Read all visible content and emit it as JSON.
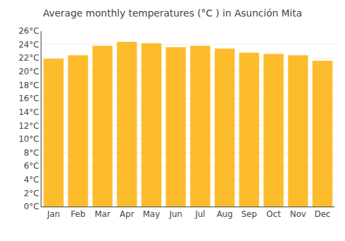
{
  "chart_data": {
    "type": "bar",
    "title": "Average monthly temperatures (°C ) in Asunción Mita",
    "categories": [
      "Jan",
      "Feb",
      "Mar",
      "Apr",
      "May",
      "Jun",
      "Jul",
      "Aug",
      "Sep",
      "Oct",
      "Nov",
      "Dec"
    ],
    "values": [
      21.9,
      22.4,
      23.8,
      24.4,
      24.2,
      23.6,
      23.8,
      23.4,
      22.8,
      22.6,
      22.4,
      21.6
    ],
    "color": "#FDBC2C",
    "ylim": [
      0,
      26
    ],
    "yticks": [
      {
        "value": 0,
        "label": "0°C"
      },
      {
        "value": 2,
        "label": "2°C"
      },
      {
        "value": 4,
        "label": "4°C"
      },
      {
        "value": 6,
        "label": "6°C"
      },
      {
        "value": 8,
        "label": "8°C"
      },
      {
        "value": 10,
        "label": "10°C"
      },
      {
        "value": 12,
        "label": "12°C"
      },
      {
        "value": 14,
        "label": "14°C"
      },
      {
        "value": 16,
        "label": "16°C"
      },
      {
        "value": 18,
        "label": "18°C"
      },
      {
        "value": 20,
        "label": "20°C"
      },
      {
        "value": 22,
        "label": "22°C"
      },
      {
        "value": 24,
        "label": "24°C"
      },
      {
        "value": 26,
        "label": "26°C"
      }
    ],
    "grid": true
  }
}
